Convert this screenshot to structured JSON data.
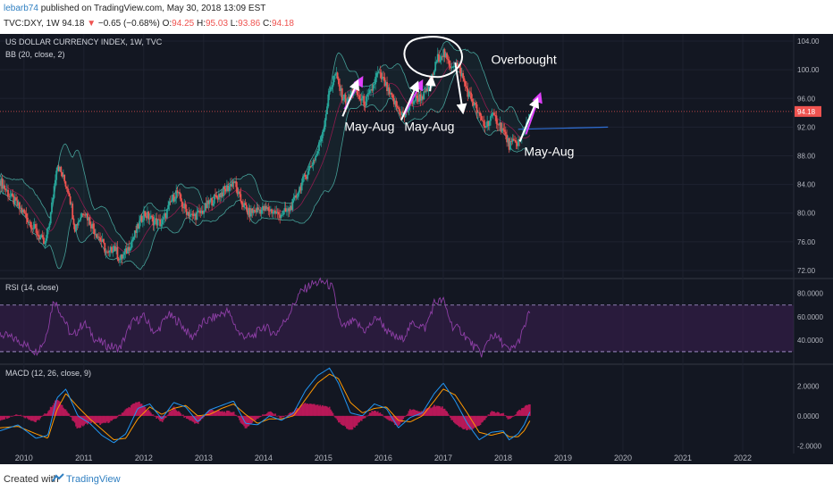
{
  "header": {
    "author": "lebarb74",
    "published": "published on TradingView.com, May 30, 2018 13:09 EST",
    "ticker": "TVC:DXY, 1W",
    "price": "94.18",
    "change_arrow": "▼",
    "change": "−0.65 (−0.68%)",
    "o_label": "O:",
    "o_value": "94.25",
    "h_label": "H:",
    "h_value": "95.03",
    "l_label": "L:",
    "l_value": "93.86",
    "c_label": "C:",
    "c_value": "94.18"
  },
  "footer": {
    "created_with": "Created with",
    "brand": "TradingView"
  },
  "colors": {
    "background": "#131722",
    "up": "#26a69a",
    "down": "#ef5350",
    "bb_band": "#4db6ac",
    "rsi_line": "#8e3fa6",
    "rsi_fill": "#3d1f52",
    "macd_line": "#2196f3",
    "signal_line": "#ff9800",
    "histogram": "#c2185b",
    "annotation": "#ffffff",
    "arrow_magenta": "#e040fb",
    "trendline": "#2f6fd6"
  },
  "chart_data": [
    {
      "type": "candlestick",
      "title": "US DOLLAR CURRENCY INDEX, 1W, TVC",
      "indicator": "BB (20, close, 2)",
      "x_ticks": [
        "2010",
        "2011",
        "2012",
        "2013",
        "2014",
        "2015",
        "2016",
        "2017",
        "2018",
        "2019",
        "2020",
        "2021",
        "2022"
      ],
      "ylim": [
        71,
        105
      ],
      "y_ticks": [
        "104.00",
        "100.00",
        "96.00",
        "92.00",
        "88.00",
        "84.00",
        "80.00",
        "76.00",
        "72.00"
      ],
      "last_price": "94.18",
      "close_path": [
        [
          2009.6,
          84.5
        ],
        [
          2009.8,
          82.0
        ],
        [
          2010.0,
          80.0
        ],
        [
          2010.2,
          77.5
        ],
        [
          2010.35,
          75.5
        ],
        [
          2010.45,
          80.0
        ],
        [
          2010.55,
          87.0
        ],
        [
          2010.65,
          85.0
        ],
        [
          2010.75,
          83.0
        ],
        [
          2010.85,
          78.0
        ],
        [
          2011.0,
          80.5
        ],
        [
          2011.15,
          78.0
        ],
        [
          2011.3,
          76.0
        ],
        [
          2011.4,
          74.0
        ],
        [
          2011.5,
          75.5
        ],
        [
          2011.6,
          73.5
        ],
        [
          2011.7,
          74.5
        ],
        [
          2011.85,
          77.0
        ],
        [
          2012.0,
          80.0
        ],
        [
          2012.15,
          79.0
        ],
        [
          2012.3,
          78.5
        ],
        [
          2012.45,
          81.5
        ],
        [
          2012.55,
          83.0
        ],
        [
          2012.65,
          81.0
        ],
        [
          2012.8,
          79.5
        ],
        [
          2012.95,
          80.0
        ],
        [
          2013.1,
          81.5
        ],
        [
          2013.25,
          82.5
        ],
        [
          2013.4,
          83.5
        ],
        [
          2013.5,
          84.5
        ],
        [
          2013.6,
          82.0
        ],
        [
          2013.75,
          80.0
        ],
        [
          2013.9,
          80.5
        ],
        [
          2014.1,
          80.5
        ],
        [
          2014.25,
          79.8
        ],
        [
          2014.4,
          80.2
        ],
        [
          2014.5,
          81.5
        ],
        [
          2014.6,
          83.5
        ],
        [
          2014.75,
          86.0
        ],
        [
          2014.9,
          88.5
        ],
        [
          2015.0,
          92.0
        ],
        [
          2015.1,
          97.0
        ],
        [
          2015.2,
          99.5
        ],
        [
          2015.3,
          96.5
        ],
        [
          2015.4,
          95.5
        ],
        [
          2015.5,
          97.5
        ],
        [
          2015.6,
          96.0
        ],
        [
          2015.7,
          95.5
        ],
        [
          2015.8,
          97.0
        ],
        [
          2015.9,
          99.5
        ],
        [
          2016.0,
          98.5
        ],
        [
          2016.1,
          96.5
        ],
        [
          2016.25,
          94.5
        ],
        [
          2016.35,
          93.5
        ],
        [
          2016.45,
          95.5
        ],
        [
          2016.55,
          96.0
        ],
        [
          2016.7,
          96.5
        ],
        [
          2016.8,
          98.5
        ],
        [
          2016.9,
          101.5
        ],
        [
          2017.0,
          102.5
        ],
        [
          2017.1,
          100.5
        ],
        [
          2017.2,
          101.0
        ],
        [
          2017.3,
          99.5
        ],
        [
          2017.4,
          97.0
        ],
        [
          2017.5,
          95.5
        ],
        [
          2017.6,
          93.5
        ],
        [
          2017.7,
          92.0
        ],
        [
          2017.8,
          93.5
        ],
        [
          2017.9,
          93.0
        ],
        [
          2018.0,
          91.5
        ],
        [
          2018.1,
          89.5
        ],
        [
          2018.2,
          89.8
        ],
        [
          2018.3,
          90.2
        ],
        [
          2018.35,
          91.5
        ],
        [
          2018.4,
          92.8
        ],
        [
          2018.45,
          94.18
        ]
      ],
      "annotations": [
        "May-Aug",
        "May-Aug",
        "May-Aug",
        "Overbought"
      ]
    },
    {
      "type": "line",
      "title": "RSI (14, close)",
      "ylim": [
        20,
        92
      ],
      "y_ticks": [
        "80.0000",
        "60.0000",
        "40.0000"
      ],
      "bands": [
        70,
        30
      ],
      "values": [
        [
          2009.6,
          45
        ],
        [
          2009.9,
          40
        ],
        [
          2010.2,
          30
        ],
        [
          2010.35,
          40
        ],
        [
          2010.5,
          75
        ],
        [
          2010.65,
          60
        ],
        [
          2010.8,
          42
        ],
        [
          2011.0,
          55
        ],
        [
          2011.2,
          40
        ],
        [
          2011.4,
          35
        ],
        [
          2011.6,
          33
        ],
        [
          2011.8,
          55
        ],
        [
          2012.0,
          60
        ],
        [
          2012.2,
          45
        ],
        [
          2012.4,
          62
        ],
        [
          2012.6,
          55
        ],
        [
          2012.8,
          42
        ],
        [
          2013.0,
          55
        ],
        [
          2013.2,
          60
        ],
        [
          2013.4,
          65
        ],
        [
          2013.6,
          45
        ],
        [
          2013.8,
          42
        ],
        [
          2014.0,
          52
        ],
        [
          2014.2,
          45
        ],
        [
          2014.4,
          60
        ],
        [
          2014.6,
          80
        ],
        [
          2014.8,
          88
        ],
        [
          2015.0,
          90
        ],
        [
          2015.15,
          85
        ],
        [
          2015.3,
          50
        ],
        [
          2015.5,
          56
        ],
        [
          2015.7,
          48
        ],
        [
          2015.9,
          60
        ],
        [
          2016.1,
          45
        ],
        [
          2016.3,
          40
        ],
        [
          2016.5,
          55
        ],
        [
          2016.7,
          50
        ],
        [
          2016.85,
          72
        ],
        [
          2017.0,
          74
        ],
        [
          2017.15,
          52
        ],
        [
          2017.3,
          48
        ],
        [
          2017.5,
          35
        ],
        [
          2017.65,
          28
        ],
        [
          2017.8,
          45
        ],
        [
          2017.95,
          40
        ],
        [
          2018.1,
          30
        ],
        [
          2018.25,
          38
        ],
        [
          2018.35,
          50
        ],
        [
          2018.45,
          66
        ]
      ]
    },
    {
      "type": "line",
      "title": "MACD (12, 26, close, 9)",
      "ylim": [
        -2.4,
        3.4
      ],
      "y_ticks": [
        "2.0000",
        "0.0000",
        "-2.0000"
      ],
      "series": [
        {
          "values": [
            [
              2009.6,
              -1.0
            ],
            [
              2009.9,
              -0.6
            ],
            [
              2010.2,
              -1.5
            ],
            [
              2010.4,
              -1.3
            ],
            [
              2010.55,
              1.2
            ],
            [
              2010.7,
              1.8
            ],
            [
              2010.9,
              0.0
            ],
            [
              2011.1,
              -0.5
            ],
            [
              2011.3,
              -1.3
            ],
            [
              2011.5,
              -1.8
            ],
            [
              2011.7,
              -1.2
            ],
            [
              2011.9,
              0.5
            ],
            [
              2012.1,
              0.8
            ],
            [
              2012.3,
              -0.2
            ],
            [
              2012.5,
              0.9
            ],
            [
              2012.7,
              0.6
            ],
            [
              2012.9,
              -0.4
            ],
            [
              2013.1,
              0.4
            ],
            [
              2013.3,
              0.7
            ],
            [
              2013.5,
              1.0
            ],
            [
              2013.7,
              -0.5
            ],
            [
              2013.9,
              -0.6
            ],
            [
              2014.1,
              0.0
            ],
            [
              2014.3,
              -0.3
            ],
            [
              2014.5,
              0.2
            ],
            [
              2014.7,
              1.7
            ],
            [
              2014.9,
              2.7
            ],
            [
              2015.1,
              3.2
            ],
            [
              2015.25,
              2.2
            ],
            [
              2015.45,
              0.2
            ],
            [
              2015.65,
              0.0
            ],
            [
              2015.85,
              0.8
            ],
            [
              2016.05,
              0.5
            ],
            [
              2016.25,
              -0.8
            ],
            [
              2016.45,
              -0.1
            ],
            [
              2016.65,
              0.2
            ],
            [
              2016.85,
              1.5
            ],
            [
              2017.0,
              2.2
            ],
            [
              2017.2,
              1.0
            ],
            [
              2017.4,
              -0.5
            ],
            [
              2017.6,
              -1.6
            ],
            [
              2017.8,
              -1.1
            ],
            [
              2018.0,
              -1.0
            ],
            [
              2018.1,
              -1.6
            ],
            [
              2018.25,
              -1.2
            ],
            [
              2018.35,
              -0.6
            ],
            [
              2018.45,
              0.3
            ]
          ]
        },
        {
          "values": [
            [
              2009.6,
              -0.8
            ],
            [
              2009.9,
              -0.7
            ],
            [
              2010.2,
              -1.2
            ],
            [
              2010.4,
              -1.5
            ],
            [
              2010.55,
              0.4
            ],
            [
              2010.7,
              1.5
            ],
            [
              2010.9,
              0.6
            ],
            [
              2011.1,
              -0.2
            ],
            [
              2011.3,
              -0.9
            ],
            [
              2011.5,
              -1.6
            ],
            [
              2011.7,
              -1.5
            ],
            [
              2011.9,
              -0.2
            ],
            [
              2012.1,
              0.6
            ],
            [
              2012.3,
              0.1
            ],
            [
              2012.5,
              0.5
            ],
            [
              2012.7,
              0.7
            ],
            [
              2012.9,
              0.0
            ],
            [
              2013.1,
              0.1
            ],
            [
              2013.3,
              0.5
            ],
            [
              2013.5,
              0.8
            ],
            [
              2013.7,
              0.1
            ],
            [
              2013.9,
              -0.5
            ],
            [
              2014.1,
              -0.2
            ],
            [
              2014.3,
              -0.2
            ],
            [
              2014.5,
              0.0
            ],
            [
              2014.7,
              1.1
            ],
            [
              2014.9,
              2.2
            ],
            [
              2015.1,
              2.8
            ],
            [
              2015.25,
              2.5
            ],
            [
              2015.45,
              0.9
            ],
            [
              2015.65,
              0.2
            ],
            [
              2015.85,
              0.5
            ],
            [
              2016.05,
              0.6
            ],
            [
              2016.25,
              -0.3
            ],
            [
              2016.45,
              -0.4
            ],
            [
              2016.65,
              0.0
            ],
            [
              2016.85,
              1.0
            ],
            [
              2017.0,
              1.8
            ],
            [
              2017.2,
              1.4
            ],
            [
              2017.4,
              0.2
            ],
            [
              2017.6,
              -1.1
            ],
            [
              2017.8,
              -1.3
            ],
            [
              2018.0,
              -1.1
            ],
            [
              2018.1,
              -1.4
            ],
            [
              2018.25,
              -1.4
            ],
            [
              2018.35,
              -1.0
            ],
            [
              2018.45,
              -0.3
            ]
          ]
        }
      ]
    }
  ]
}
